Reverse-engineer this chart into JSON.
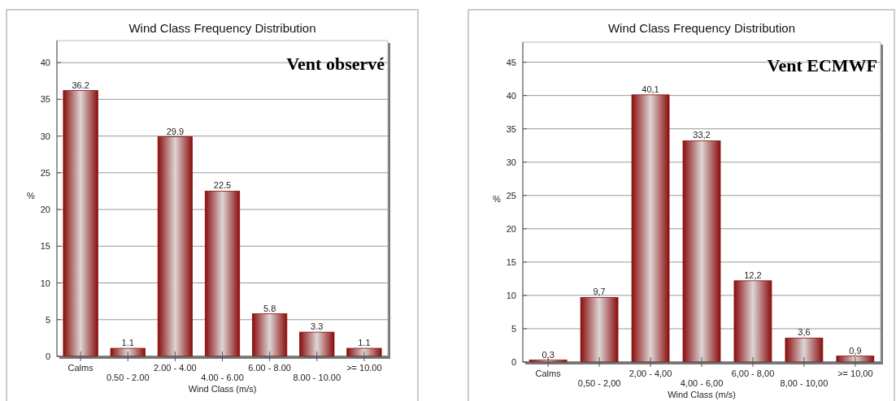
{
  "chart_data": [
    {
      "type": "bar",
      "title": "Wind Class Frequency Distribution",
      "xlabel": "Wind Class (m/s)",
      "ylabel": "%",
      "annotations": [
        "Vent observé"
      ],
      "categories": [
        "Calms",
        "0.50 - 2.00",
        "2.00 - 4.00",
        "4.00 - 6.00",
        "6.00 - 8.00",
        "8.00 - 10.00",
        ">= 10.00"
      ],
      "series": [
        {
          "color": "#8b0d0d",
          "values": [
            36.2,
            1.1,
            29.9,
            22.5,
            5.8,
            3.3,
            1.1
          ]
        }
      ],
      "ylim": [
        0,
        43
      ],
      "yticks": [
        0,
        5,
        10,
        15,
        20,
        25,
        30,
        35,
        40
      ],
      "grid": "y",
      "data_labels": true
    },
    {
      "type": "bar",
      "title": "Wind Class Frequency Distribution",
      "xlabel": "Wind Class (m/s)",
      "ylabel": "%",
      "annotations": [
        "Vent ECMWF"
      ],
      "categories": [
        "Calms",
        "0,50 - 2,00",
        "2,00 - 4,00",
        "4,00 - 6,00",
        "6,00 - 8,00",
        "8,00 - 10,00",
        ">= 10,00"
      ],
      "series": [
        {
          "color": "#8b0d0d",
          "values": [
            0.3,
            9.7,
            40.1,
            33.2,
            12.2,
            3.6,
            0.9
          ],
          "value_labels": [
            "0,3",
            "9,7",
            "40,1",
            "33,2",
            "12,2",
            "3,6",
            "0,9"
          ]
        }
      ],
      "ylim": [
        0,
        48
      ],
      "yticks": [
        0,
        5,
        10,
        15,
        20,
        25,
        30,
        35,
        40,
        45
      ],
      "grid": "y"
    }
  ]
}
